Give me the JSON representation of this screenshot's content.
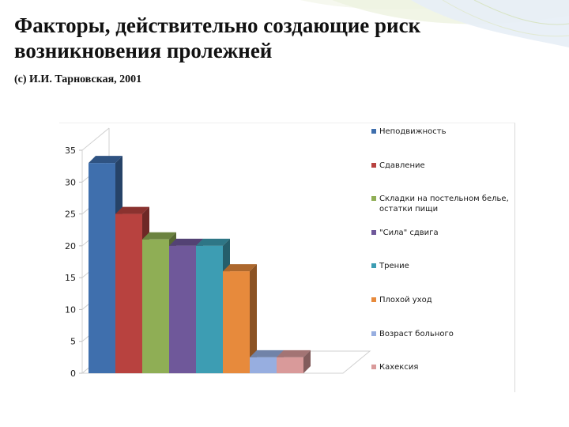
{
  "slide": {
    "title_lines": [
      "Факторы, действительно создающие риск",
      "возникновения пролежней"
    ],
    "subtitle": "(с) И.И. Тарновская, 2001"
  },
  "chart_data": {
    "type": "bar",
    "categories": [
      "Неподвижность",
      "Сдавление",
      "Складки на постельном белье, остатки пищи",
      "\"Сила\" сдвига",
      "Трение",
      "Плохой уход",
      "Возраст больного",
      "Кахексия"
    ],
    "series": [
      {
        "values": [
          33,
          25,
          21,
          20,
          20,
          16,
          2.5,
          2.5
        ]
      }
    ],
    "colors": [
      "#4472c4",
      "#c0504d",
      "#9bbb59",
      "#8064a2",
      "#4bacc6",
      "#f79646",
      "#95b3d7",
      "#d99694"
    ],
    "colors_actual": [
      "#3f6fad",
      "#b8423f",
      "#8fae55",
      "#6f589a",
      "#3d9db3",
      "#e78a3c",
      "#97aee0",
      "#d99a9a"
    ],
    "yticks": [
      "0",
      "5",
      "10",
      "15",
      "20",
      "25",
      "30",
      "35"
    ],
    "ylim": [
      0,
      35
    ],
    "grid": false,
    "legend_position": "right",
    "style": "3d-clustered-bar"
  }
}
